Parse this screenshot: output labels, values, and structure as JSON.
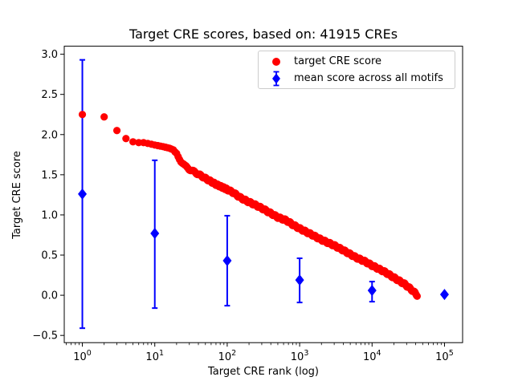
{
  "chart_data": {
    "type": "scatter",
    "title": "Target CRE scores, based on: 41915 CREs",
    "xlabel": "Target CRE rank (log)",
    "ylabel": "Target CRE score",
    "x_scale": "log10",
    "xlim_log10": [
      -0.25,
      5.25
    ],
    "ylim": [
      -0.59,
      3.1
    ],
    "grid": false,
    "x_tick_base": "10",
    "x_tick_exponents": [
      0,
      1,
      2,
      3,
      4,
      5
    ],
    "y_ticks": [
      {
        "value": 3.0,
        "label": "3.0"
      },
      {
        "value": 2.5,
        "label": "2.5"
      },
      {
        "value": 2.0,
        "label": "2.0"
      },
      {
        "value": 1.5,
        "label": "1.5"
      },
      {
        "value": 1.0,
        "label": "1.0"
      },
      {
        "value": 0.5,
        "label": "0.5"
      },
      {
        "value": 0.0,
        "label": "0.0"
      },
      {
        "value": -0.5,
        "label": "−0.5"
      }
    ],
    "legend": {
      "location": "upper right"
    },
    "colors": {
      "axis": "#000000",
      "background": "#ffffff",
      "legend_border": "#cccccc"
    },
    "series": [
      {
        "name": "target CRE score",
        "color": "#ff0000",
        "marker": "circle",
        "anchors": {
          "rank": [
            1,
            2,
            3,
            4,
            5,
            6,
            7,
            8,
            9,
            10,
            13,
            16,
            18,
            20,
            23,
            26,
            30,
            36,
            45,
            56,
            70,
            93,
            120,
            155,
            200,
            250,
            305,
            400,
            500,
            660,
            800,
            1000,
            1500,
            2000,
            3000,
            4000,
            6000,
            8000,
            10000,
            15000,
            20000,
            28000,
            35000,
            40000,
            41915
          ],
          "score": [
            2.25,
            2.22,
            2.05,
            1.95,
            1.91,
            1.9,
            1.9,
            1.89,
            1.88,
            1.87,
            1.85,
            1.83,
            1.81,
            1.76,
            1.67,
            1.61,
            1.57,
            1.53,
            1.48,
            1.43,
            1.38,
            1.33,
            1.28,
            1.21,
            1.16,
            1.12,
            1.08,
            1.02,
            0.97,
            0.93,
            0.88,
            0.83,
            0.75,
            0.69,
            0.62,
            0.56,
            0.47,
            0.42,
            0.37,
            0.29,
            0.22,
            0.14,
            0.07,
            0.02,
            0.0
          ]
        }
      },
      {
        "name": "mean score across all motifs",
        "color": "#0000ff",
        "marker": "diamond",
        "points": [
          {
            "rank": 1,
            "mean": 1.26,
            "lo": -0.41,
            "hi": 2.93
          },
          {
            "rank": 10,
            "mean": 0.77,
            "lo": -0.16,
            "hi": 1.68
          },
          {
            "rank": 100,
            "mean": 0.43,
            "lo": -0.13,
            "hi": 0.99
          },
          {
            "rank": 1000,
            "mean": 0.19,
            "lo": -0.09,
            "hi": 0.46
          },
          {
            "rank": 10000,
            "mean": 0.06,
            "lo": -0.08,
            "hi": 0.17
          },
          {
            "rank": 100000,
            "mean": 0.01,
            "lo": 0.01,
            "hi": 0.01
          }
        ]
      }
    ]
  }
}
